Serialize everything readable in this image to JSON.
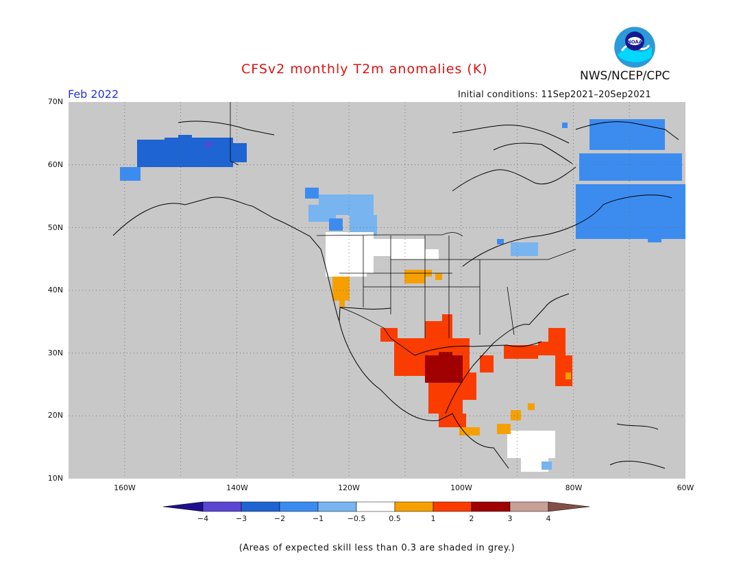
{
  "header": {
    "title": "CFSv2 monthly T2m anomalies (K)",
    "period": "Feb 2022",
    "agency": "NWS/NCEP/CPC",
    "initial_conditions": "Initial conditions: 11Sep2021–20Sep2021",
    "logo_text": "NOAA"
  },
  "map": {
    "lat_labels": [
      "70N",
      "60N",
      "50N",
      "40N",
      "30N",
      "20N",
      "10N"
    ],
    "lon_labels": [
      "160W",
      "140W",
      "120W",
      "100W",
      "80W",
      "60W"
    ],
    "lat_range": [
      10,
      70
    ],
    "lon_range": [
      -170,
      -60
    ],
    "background_color": "#c8c8c8",
    "gridlines": true
  },
  "legend": {
    "tick_labels": [
      "−4",
      "−3",
      "−2",
      "−1",
      "−0.5",
      "0.5",
      "1",
      "2",
      "3",
      "4"
    ],
    "colors": {
      "lt_-4": "#1e0f8c",
      "-4_-3": "#5a46d2",
      "-3_-2": "#1e64d2",
      "-2_-1": "#3c8cf0",
      "-1_-0.5": "#78b4f0",
      "-0.5_0.5": "#ffffff",
      "0.5_1": "#f5a000",
      "1_2": "#fa3c00",
      "2_3": "#a00000",
      "3_4": "#c8a096",
      "gt_4": "#825046"
    }
  },
  "footnote": "(Areas of expected skill less than 0.3 are shaded in grey.)"
}
